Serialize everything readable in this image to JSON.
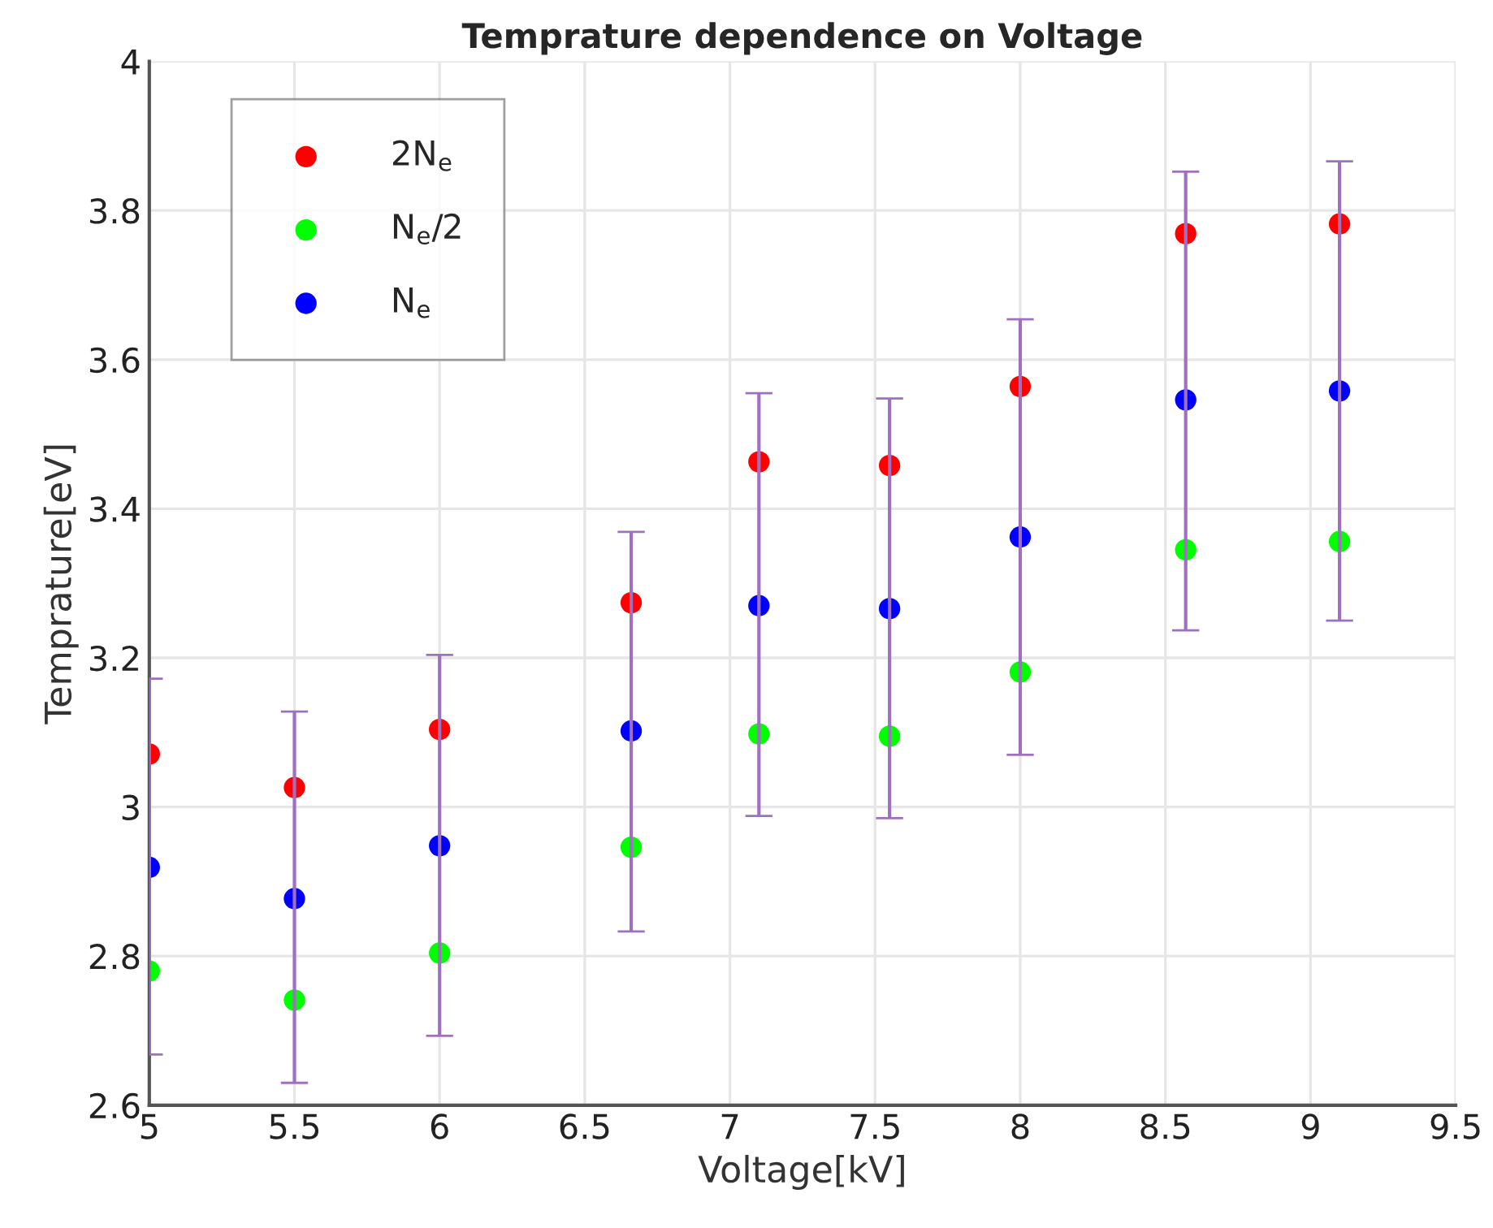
{
  "chart_data": {
    "type": "scatter",
    "title": "Temprature dependence on Voltage",
    "xlabel": "Voltage[kV]",
    "ylabel": "Temprature[eV]",
    "x": [
      5,
      5.5,
      6,
      6.66,
      7.1,
      7.55,
      8,
      8.57,
      9.1
    ],
    "series": [
      {
        "name": "2N$_{e}$",
        "color": "#ff0000",
        "values": [
          3.071,
          3.026,
          3.104,
          3.274,
          3.463,
          3.458,
          3.564,
          3.769,
          3.782
        ]
      },
      {
        "name": "N$_{e}$/2",
        "color": "#00ff00",
        "values": [
          2.78,
          2.741,
          2.804,
          2.946,
          3.098,
          3.095,
          3.181,
          3.345,
          3.356
        ]
      },
      {
        "name": "N$_{e}$",
        "color": "#0000ff",
        "values": [
          2.919,
          2.877,
          2.948,
          3.102,
          3.27,
          3.266,
          3.362,
          3.546,
          3.558
        ],
        "errors": [
          [
            2.668,
            3.172
          ],
          [
            2.63,
            3.128
          ],
          [
            2.693,
            3.204
          ],
          [
            2.833,
            3.369
          ],
          [
            2.988,
            3.555
          ],
          [
            2.985,
            3.548
          ],
          [
            3.07,
            3.654
          ],
          [
            3.237,
            3.852
          ],
          [
            3.25,
            3.866
          ]
        ]
      }
    ],
    "xlim": [
      5,
      9.5
    ],
    "xticks": [
      5,
      5.5,
      6,
      6.5,
      7,
      7.5,
      8,
      8.5,
      9,
      9.5
    ],
    "ylim": [
      2.6,
      4
    ],
    "yticks": [
      2.6,
      2.8,
      3,
      3.2,
      3.4,
      3.6,
      3.8,
      4
    ],
    "grid": true,
    "legend": "top left",
    "marker": "circle"
  }
}
